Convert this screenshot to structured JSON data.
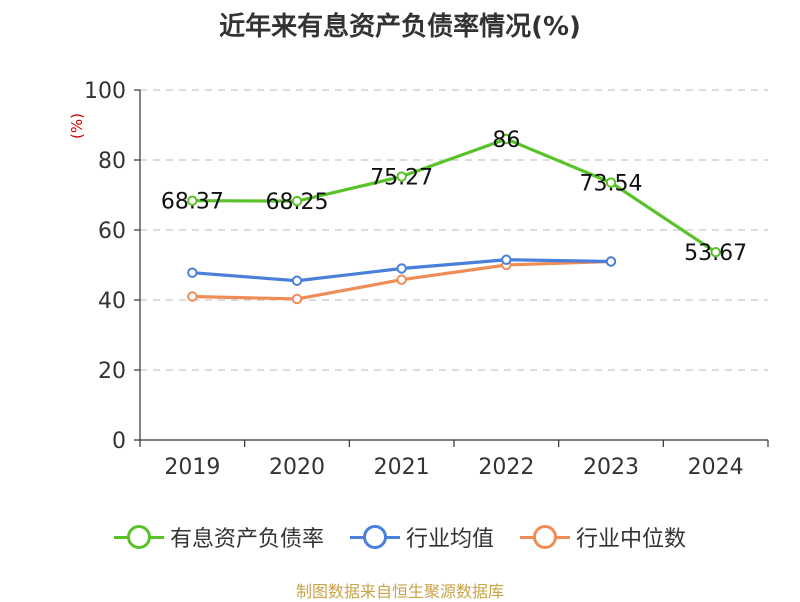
{
  "chart_data": {
    "type": "line",
    "title": "近年来有息资产负债率情况(%)",
    "ylabel": "(%)",
    "ylim": [
      0,
      100
    ],
    "yticks": [
      0,
      20,
      40,
      60,
      80,
      100
    ],
    "categories": [
      "2019",
      "2020",
      "2021",
      "2022",
      "2023",
      "2024"
    ],
    "grid": true,
    "legend_position": "bottom",
    "series": [
      {
        "name": "有息资产负债率",
        "color": "#5ac229",
        "values": [
          68.37,
          68.25,
          75.27,
          86,
          73.54,
          53.67
        ],
        "labels": [
          "68.37",
          "68.25",
          "75.27",
          "86",
          "73.54",
          "53.67"
        ]
      },
      {
        "name": "行业均值",
        "color": "#4a7fdb",
        "values": [
          47.8,
          45.5,
          49.0,
          51.5,
          51.0,
          null
        ]
      },
      {
        "name": "行业中位数",
        "color": "#f08c55",
        "values": [
          41.0,
          40.3,
          45.8,
          50.0,
          51.0,
          null
        ]
      }
    ]
  },
  "source": "制图数据来自恒生聚源数据库"
}
